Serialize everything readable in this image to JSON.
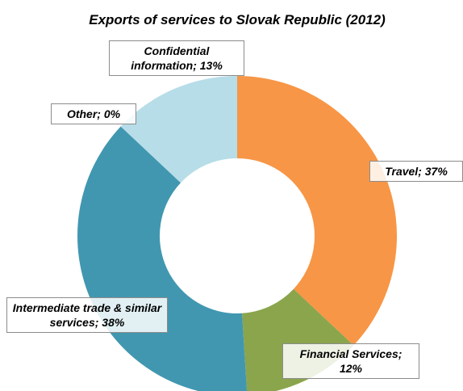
{
  "chart_data": {
    "type": "donut",
    "title": "Exports of services to Slovak Republic (2012)",
    "values": [
      37,
      12,
      38,
      0,
      13
    ],
    "value_labels": [
      "Travel; 37%",
      "Financial Services; 12%",
      "Intermediate trade & similar services; 38%",
      "Other; 0%",
      "Confidential information; 13%"
    ],
    "colors": [
      "#f79646",
      "#8aa54c",
      "#4197b0",
      "#2e6f86",
      "#b7dde8"
    ]
  }
}
